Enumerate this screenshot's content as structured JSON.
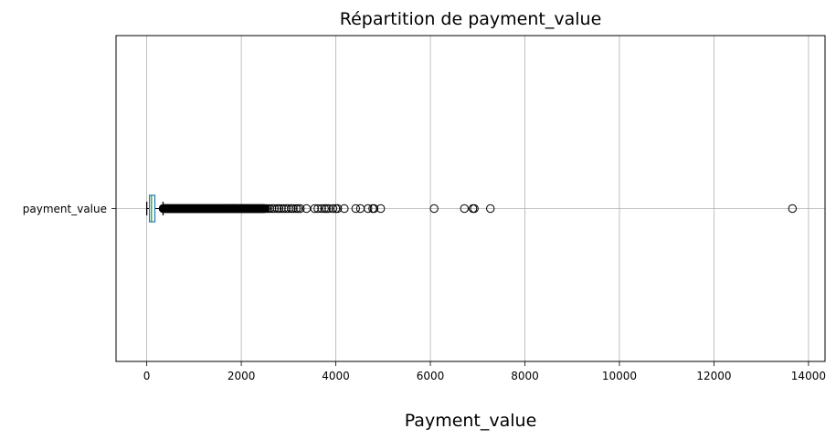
{
  "chart_data": {
    "type": "boxplot",
    "orientation": "horizontal",
    "title": "Répartition de payment_value",
    "xlabel": "Payment_value",
    "ylabel": "",
    "category": "payment_value",
    "xlim": [
      -650,
      14350
    ],
    "xticks": [
      0,
      2000,
      4000,
      6000,
      8000,
      10000,
      12000,
      14000
    ],
    "xtick_labels": [
      "0",
      "2000",
      "4000",
      "6000",
      "8000",
      "10000",
      "12000",
      "14000"
    ],
    "grid": true,
    "box": {
      "whisker_low": 0,
      "q1": 56.8,
      "median": 100,
      "q3": 171.8,
      "whisker_high": 344.3
    },
    "dense_outlier_range": [
      344.3,
      2500
    ],
    "outliers": [
      2520,
      2560,
      2600,
      2650,
      2700,
      2760,
      2800,
      2850,
      2900,
      2950,
      3000,
      3060,
      3100,
      3160,
      3200,
      3250,
      3380,
      3550,
      3620,
      3700,
      3760,
      3800,
      3850,
      3940,
      4000,
      4040,
      4180,
      4420,
      4520,
      4680,
      4780,
      4810,
      4950,
      6080,
      6720,
      6900,
      6930,
      7270,
      13660
    ],
    "colors": {
      "box": "#1f77b4",
      "median": "#2ca02c",
      "whisker": "#000000",
      "outlier": "#000000",
      "grid": "#b0b0b0"
    }
  }
}
